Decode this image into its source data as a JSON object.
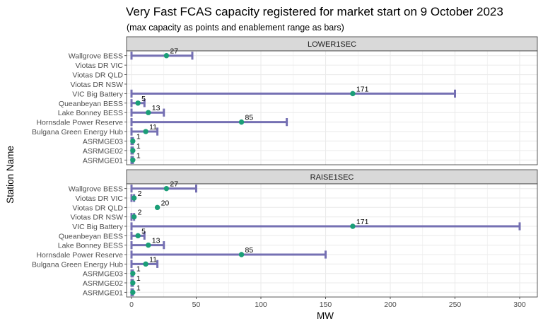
{
  "title": "Very Fast FCAS capacity registered for market start on 9 October 2023",
  "subtitle": "(max capacity as points and enablement range as bars)",
  "chart_data": {
    "type": "scatter",
    "title": "Very Fast FCAS capacity registered for market start on 9 October 2023",
    "subtitle": "(max capacity as points and enablement range as bars)",
    "xlabel": "MW",
    "ylabel": "Station Name",
    "xlim": [
      0,
      300
    ],
    "x_ticks": [
      0,
      50,
      100,
      150,
      200,
      250,
      300
    ],
    "x_tick_labels": [
      "0",
      "50",
      "100",
      "150",
      "200",
      "250",
      "300"
    ],
    "categories": [
      "Wallgrove BESS",
      "Viotas DR VIC",
      "Viotas DR QLD",
      "Viotas DR NSW",
      "VIC Big Battery",
      "Queanbeyan BESS",
      "Lake Bonney BESS",
      "Hornsdale Power Reserve",
      "Bulgana Green Energy Hub",
      "ASRMGE03",
      "ASRMGE02",
      "ASRMGE01"
    ],
    "grid": true,
    "colors": {
      "point": "#1b9e77",
      "range_bar": "#7570b3",
      "strip_fill": "#d9d9d9",
      "grid": "#ebebeb"
    },
    "panels": [
      {
        "name": "LOWER1SEC",
        "max_capacity": [
          27,
          null,
          null,
          null,
          171,
          5,
          13,
          85,
          11,
          1,
          1,
          1
        ],
        "point_labels": [
          "27",
          "",
          "",
          "",
          "171",
          "5",
          "13",
          "85",
          "11",
          "1",
          "1",
          "1"
        ],
        "range_low": [
          0,
          null,
          null,
          null,
          0,
          0,
          0,
          0,
          0,
          0,
          0,
          0
        ],
        "range_high": [
          47,
          null,
          null,
          null,
          250,
          10,
          25,
          120,
          20,
          1,
          1,
          1
        ]
      },
      {
        "name": "RAISE1SEC",
        "max_capacity": [
          27,
          2,
          20,
          2,
          171,
          5,
          13,
          85,
          11,
          1,
          1,
          1
        ],
        "point_labels": [
          "27",
          "2",
          "20",
          "2",
          "171",
          "5",
          "13",
          "85",
          "11",
          "1",
          "1",
          "1"
        ],
        "range_low": [
          0,
          0,
          null,
          0,
          0,
          0,
          0,
          0,
          0,
          0,
          0,
          0
        ],
        "range_high": [
          50,
          2,
          null,
          2,
          300,
          10,
          25,
          150,
          20,
          1,
          1,
          1
        ]
      }
    ]
  }
}
